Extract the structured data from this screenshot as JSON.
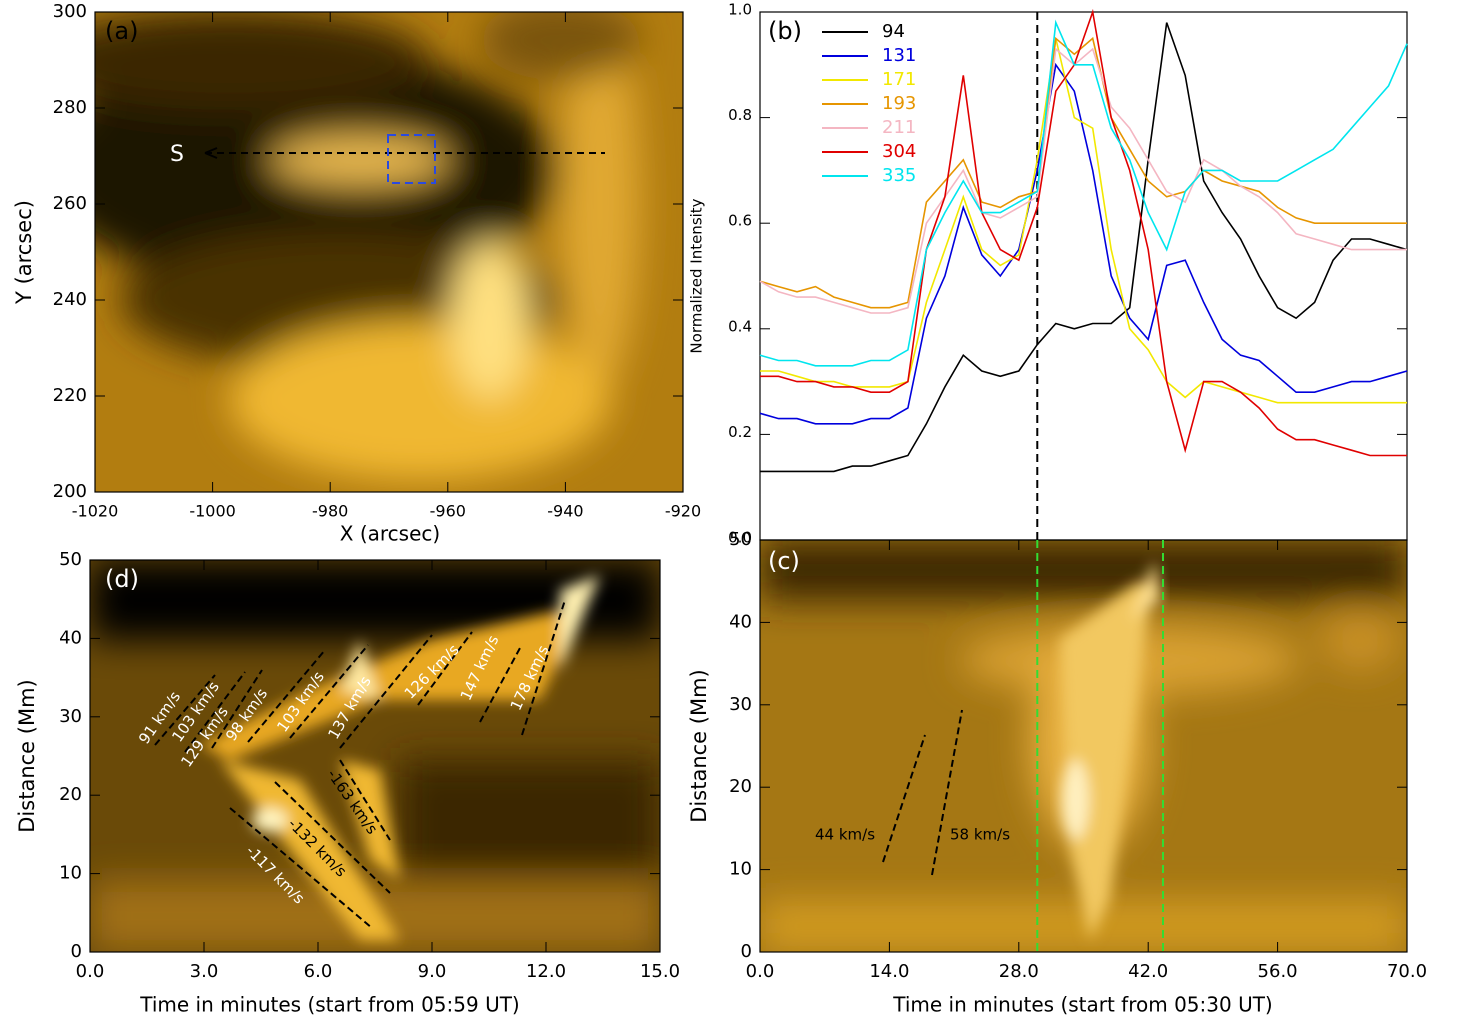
{
  "chart_data": [
    {
      "type": "image",
      "panel_label": "(a)",
      "xlabel": "X (arcsec)",
      "ylabel": "Y (arcsec)",
      "xlim": [
        -1020,
        -920
      ],
      "xticks": [
        -1020,
        -1000,
        -980,
        -960,
        -940,
        -920
      ],
      "ylim": [
        200,
        300
      ],
      "yticks": [
        200,
        220,
        240,
        260,
        280,
        300
      ],
      "annotations": [
        "S"
      ]
    },
    {
      "type": "line",
      "panel_label": "(b)",
      "ylabel": "Normalized Intensity",
      "xlim": [
        0,
        70
      ],
      "ylim": [
        0,
        1
      ],
      "yticks": [
        {
          "value": 0,
          "label": "0.0"
        },
        0.2,
        0.4,
        0.6,
        0.8,
        {
          "value": 1,
          "label": "1.0"
        }
      ],
      "vlines": [
        30
      ],
      "x": [
        0,
        2,
        4,
        6,
        8,
        10,
        12,
        14,
        16,
        18,
        20,
        22,
        24,
        26,
        28,
        30,
        32,
        34,
        36,
        38,
        40,
        42,
        44,
        46,
        48,
        50,
        52,
        54,
        56,
        58,
        60,
        62,
        64,
        66,
        68,
        70
      ],
      "series": [
        {
          "name": "94",
          "color": "#000000",
          "values": [
            0.13,
            0.13,
            0.13,
            0.13,
            0.13,
            0.14,
            0.14,
            0.15,
            0.16,
            0.22,
            0.29,
            0.35,
            0.32,
            0.31,
            0.32,
            0.37,
            0.41,
            0.4,
            0.41,
            0.41,
            0.44,
            0.72,
            0.98,
            0.88,
            0.68,
            0.62,
            0.57,
            0.5,
            0.44,
            0.42,
            0.45,
            0.53,
            0.57,
            0.57,
            0.56,
            0.55
          ]
        },
        {
          "name": "131",
          "color": "#0000dd",
          "values": [
            0.24,
            0.23,
            0.23,
            0.22,
            0.22,
            0.22,
            0.23,
            0.23,
            0.25,
            0.42,
            0.5,
            0.63,
            0.54,
            0.5,
            0.55,
            0.7,
            0.9,
            0.85,
            0.7,
            0.5,
            0.42,
            0.38,
            0.52,
            0.53,
            0.45,
            0.38,
            0.35,
            0.34,
            0.31,
            0.28,
            0.28,
            0.29,
            0.3,
            0.3,
            0.31,
            0.32
          ]
        },
        {
          "name": "171",
          "color": "#f2e800",
          "values": [
            0.32,
            0.32,
            0.31,
            0.3,
            0.3,
            0.29,
            0.29,
            0.29,
            0.3,
            0.45,
            0.55,
            0.65,
            0.55,
            0.52,
            0.54,
            0.72,
            0.95,
            0.8,
            0.78,
            0.55,
            0.4,
            0.36,
            0.3,
            0.27,
            0.3,
            0.29,
            0.28,
            0.27,
            0.26,
            0.26,
            0.26,
            0.26,
            0.26,
            0.26,
            0.26,
            0.26
          ]
        },
        {
          "name": "193",
          "color": "#e69500",
          "values": [
            0.49,
            0.48,
            0.47,
            0.48,
            0.46,
            0.45,
            0.44,
            0.44,
            0.45,
            0.64,
            0.68,
            0.72,
            0.64,
            0.63,
            0.65,
            0.66,
            0.95,
            0.92,
            0.95,
            0.8,
            0.74,
            0.68,
            0.65,
            0.66,
            0.7,
            0.68,
            0.67,
            0.66,
            0.63,
            0.61,
            0.6,
            0.6,
            0.6,
            0.6,
            0.6,
            0.6
          ]
        },
        {
          "name": "211",
          "color": "#f4b6c2",
          "values": [
            0.49,
            0.47,
            0.46,
            0.46,
            0.45,
            0.44,
            0.43,
            0.43,
            0.44,
            0.6,
            0.65,
            0.7,
            0.62,
            0.61,
            0.63,
            0.65,
            0.93,
            0.9,
            0.93,
            0.82,
            0.78,
            0.72,
            0.66,
            0.64,
            0.72,
            0.7,
            0.67,
            0.65,
            0.62,
            0.58,
            0.57,
            0.56,
            0.55,
            0.55,
            0.55,
            0.55
          ]
        },
        {
          "name": "304",
          "color": "#e00000",
          "values": [
            0.31,
            0.31,
            0.3,
            0.3,
            0.29,
            0.29,
            0.28,
            0.28,
            0.3,
            0.55,
            0.65,
            0.88,
            0.62,
            0.55,
            0.53,
            0.63,
            0.85,
            0.9,
            1.0,
            0.8,
            0.7,
            0.55,
            0.3,
            0.17,
            0.3,
            0.3,
            0.28,
            0.25,
            0.21,
            0.19,
            0.19,
            0.18,
            0.17,
            0.16,
            0.16,
            0.16
          ]
        },
        {
          "name": "335",
          "color": "#00e5ee",
          "values": [
            0.35,
            0.34,
            0.34,
            0.33,
            0.33,
            0.33,
            0.34,
            0.34,
            0.36,
            0.55,
            0.62,
            0.68,
            0.62,
            0.62,
            0.64,
            0.66,
            0.98,
            0.9,
            0.9,
            0.78,
            0.72,
            0.62,
            0.55,
            0.66,
            0.7,
            0.7,
            0.68,
            0.68,
            0.68,
            0.7,
            0.72,
            0.74,
            0.78,
            0.82,
            0.86,
            0.94
          ]
        }
      ]
    },
    {
      "type": "image",
      "panel_label": "(c)",
      "xlabel": "Time in minutes (start from 05:30 UT)",
      "ylabel": "Distance (Mm)",
      "xlim": [
        0,
        70
      ],
      "xticks": [
        {
          "value": 0,
          "label": "0.0"
        },
        {
          "value": 14,
          "label": "14.0"
        },
        {
          "value": 28,
          "label": "28.0"
        },
        {
          "value": 42,
          "label": "42.0"
        },
        {
          "value": 56,
          "label": "56.0"
        },
        {
          "value": 70,
          "label": "70.0"
        }
      ],
      "ylim": [
        0,
        50
      ],
      "yticks": [
        0,
        10,
        20,
        30,
        40,
        50
      ],
      "vlines": [
        30,
        43.6
      ],
      "vline_color": "#33dd33",
      "annotations": [
        "44 km/s",
        "58 km/s"
      ]
    },
    {
      "type": "image",
      "panel_label": "(d)",
      "xlabel": "Time in minutes (start from 05:59 UT)",
      "ylabel": "Distance (Mm)",
      "xlim": [
        0,
        15
      ],
      "xticks": [
        {
          "value": 0,
          "label": "0.0"
        },
        {
          "value": 3,
          "label": "3.0"
        },
        {
          "value": 6,
          "label": "6.0"
        },
        {
          "value": 9,
          "label": "9.0"
        },
        {
          "value": 12,
          "label": "12.0"
        },
        {
          "value": 15,
          "label": "15.0"
        }
      ],
      "ylim": [
        0,
        50
      ],
      "yticks": [
        0,
        10,
        20,
        30,
        40,
        50
      ],
      "annotations": [
        "91 km/s",
        "103 km/s",
        "129 km/s",
        "98 km/s",
        "103 km/s",
        "137 km/s",
        "126 km/s",
        "147 km/s",
        "178 km/s",
        "-163 km/s",
        "-132 km/s",
        "-117 km/s"
      ]
    }
  ]
}
